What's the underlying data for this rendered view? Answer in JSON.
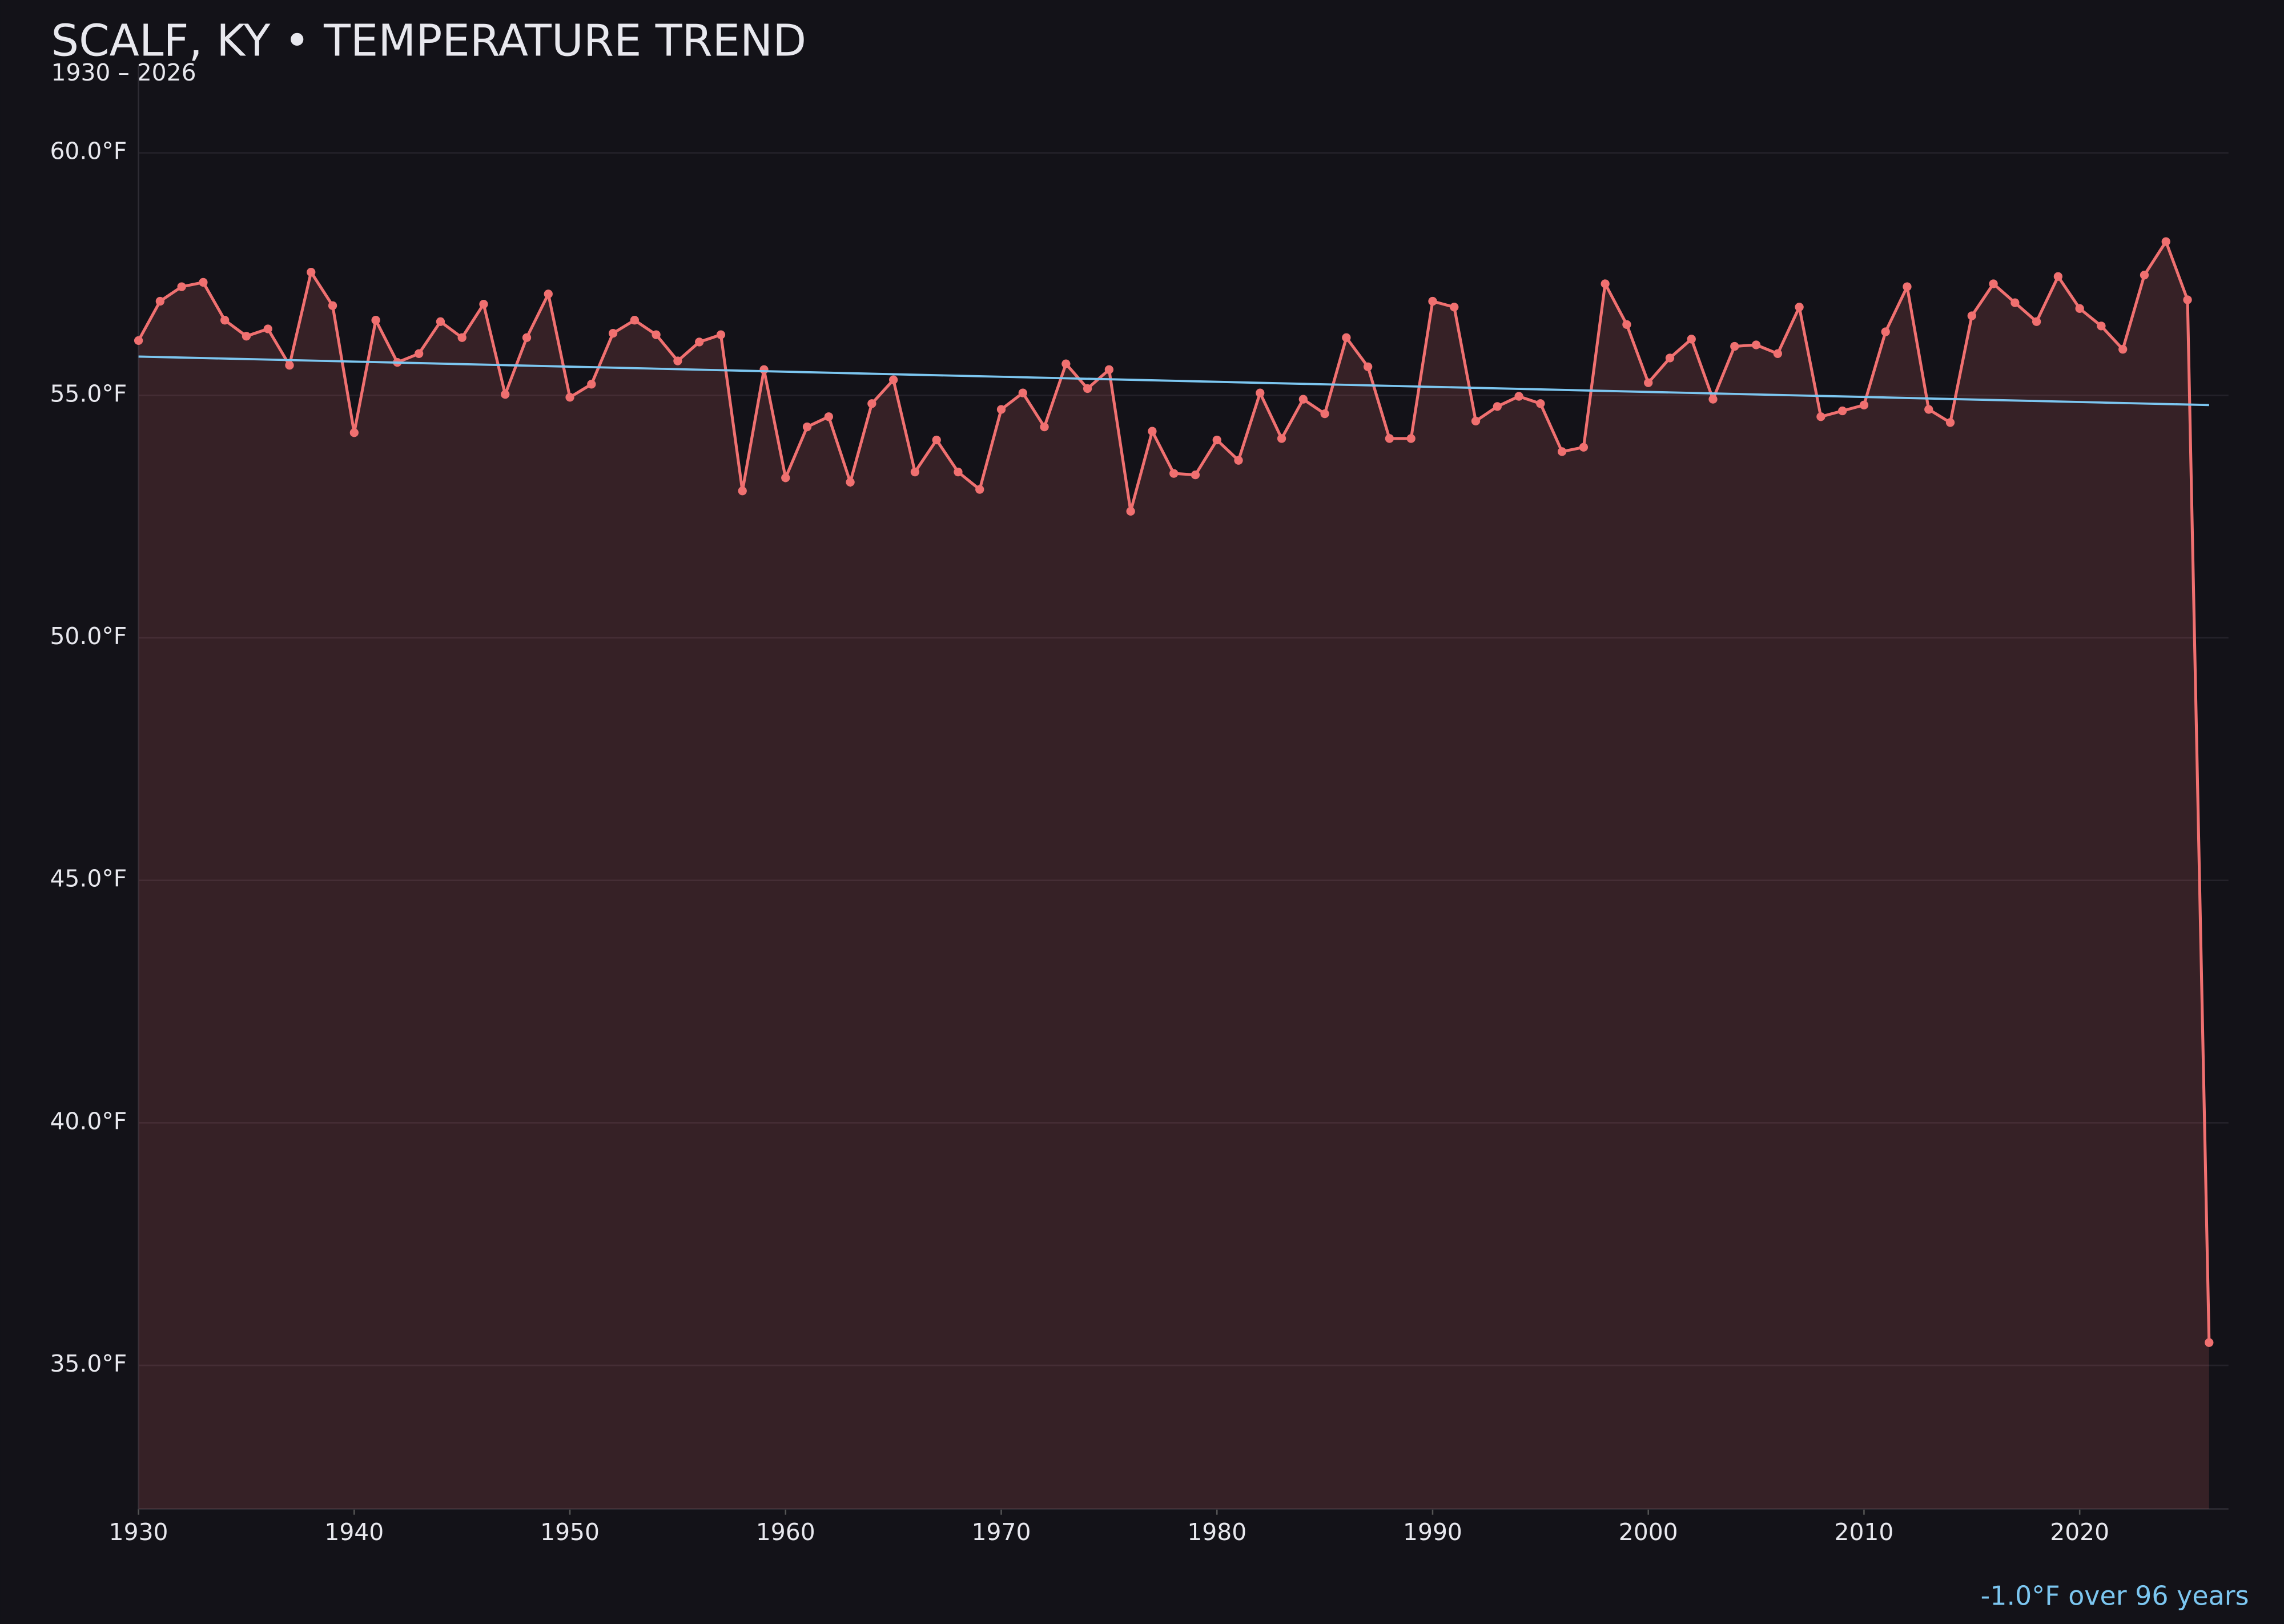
{
  "chart_data": {
    "type": "line",
    "title": "SCALF, KY • TEMPERATURE TREND",
    "subtitle": "1930 – 2026",
    "annotation": "-1.0°F over 96 years",
    "x": [
      1930,
      1931,
      1932,
      1933,
      1934,
      1935,
      1936,
      1937,
      1938,
      1939,
      1940,
      1941,
      1942,
      1943,
      1944,
      1945,
      1946,
      1947,
      1948,
      1949,
      1950,
      1951,
      1952,
      1953,
      1954,
      1955,
      1956,
      1957,
      1958,
      1959,
      1960,
      1961,
      1962,
      1963,
      1964,
      1965,
      1966,
      1967,
      1968,
      1969,
      1970,
      1971,
      1972,
      1973,
      1974,
      1975,
      1976,
      1977,
      1978,
      1979,
      1980,
      1981,
      1982,
      1983,
      1984,
      1985,
      1986,
      1987,
      1988,
      1989,
      1990,
      1991,
      1992,
      1993,
      1994,
      1995,
      1996,
      1997,
      1998,
      1999,
      2000,
      2001,
      2002,
      2003,
      2004,
      2005,
      2006,
      2007,
      2008,
      2009,
      2010,
      2011,
      2012,
      2013,
      2014,
      2015,
      2016,
      2017,
      2018,
      2019,
      2020,
      2021,
      2022,
      2023,
      2024,
      2025,
      2026
    ],
    "series": [
      {
        "color": "#f07070",
        "values": [
          56.13,
          56.94,
          57.24,
          57.33,
          56.55,
          56.22,
          56.37,
          55.62,
          57.54,
          56.85,
          54.23,
          56.55,
          55.68,
          55.86,
          56.52,
          56.19,
          56.88,
          55.02,
          56.19,
          57.09,
          54.96,
          55.23,
          56.28,
          56.55,
          56.25,
          55.71,
          56.1,
          56.25,
          53.03,
          55.53,
          53.3,
          54.35,
          54.56,
          53.21,
          54.83,
          55.32,
          53.42,
          54.08,
          53.42,
          53.06,
          54.71,
          55.05,
          54.35,
          55.65,
          55.14,
          55.53,
          52.61,
          54.26,
          53.39,
          53.36,
          54.08,
          53.66,
          55.05,
          54.11,
          54.92,
          54.62,
          56.19,
          55.59,
          54.11,
          54.11,
          56.94,
          56.82,
          54.47,
          54.77,
          54.98,
          54.83,
          53.84,
          53.93,
          57.3,
          56.46,
          55.26,
          55.77,
          56.16,
          54.92,
          56.01,
          56.04,
          55.86,
          56.82,
          54.56,
          54.68,
          54.8,
          56.31,
          57.24,
          54.71,
          54.44,
          56.64,
          57.3,
          56.91,
          56.52,
          57.45,
          56.79,
          56.43,
          55.95,
          57.48,
          58.17,
          56.97,
          35.47
        ]
      }
    ],
    "trend": {
      "color": "#7cc6f0",
      "x": [
        1930,
        2026
      ],
      "values": [
        55.8,
        54.8
      ]
    },
    "xlim": [
      1930,
      2026.9
    ],
    "ylim": [
      32.04,
      61.8
    ],
    "xticks": [
      1930,
      1940,
      1950,
      1960,
      1970,
      1980,
      1990,
      2000,
      2010,
      2020
    ],
    "yticks": [
      {
        "value": 35,
        "label": "35.0°F"
      },
      {
        "value": 40,
        "label": "40.0°F"
      },
      {
        "value": 45,
        "label": "45.0°F"
      },
      {
        "value": 50,
        "label": "50.0°F"
      },
      {
        "value": 55,
        "label": "55.0°F"
      },
      {
        "value": 60,
        "label": "60.0°F"
      }
    ],
    "grid": true
  }
}
